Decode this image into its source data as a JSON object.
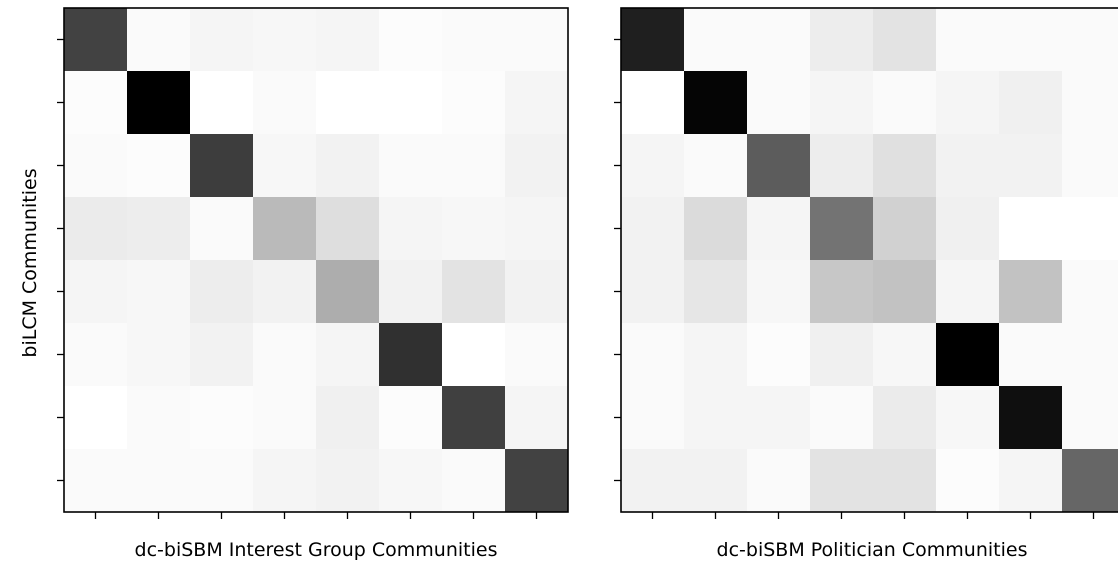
{
  "chart_data": [
    {
      "type": "heatmap",
      "title": "",
      "xlabel": "dc-biSBM Interest Group Communities",
      "ylabel": "biLCM Communities",
      "color_scale": {
        "low": "#ffffff",
        "high": "#000000"
      },
      "values": [
        [
          0.74,
          0.02,
          0.04,
          0.03,
          0.04,
          0.01,
          0.02,
          0.02
        ],
        [
          0.01,
          1.0,
          0.0,
          0.02,
          0.0,
          0.0,
          0.01,
          0.04
        ],
        [
          0.02,
          0.01,
          0.76,
          0.03,
          0.05,
          0.02,
          0.02,
          0.05
        ],
        [
          0.08,
          0.07,
          0.02,
          0.27,
          0.13,
          0.04,
          0.03,
          0.04
        ],
        [
          0.04,
          0.03,
          0.07,
          0.05,
          0.32,
          0.05,
          0.11,
          0.05
        ],
        [
          0.02,
          0.03,
          0.05,
          0.02,
          0.04,
          0.81,
          0.0,
          0.02
        ],
        [
          0.0,
          0.02,
          0.01,
          0.02,
          0.06,
          0.01,
          0.75,
          0.04
        ],
        [
          0.02,
          0.02,
          0.02,
          0.04,
          0.05,
          0.03,
          0.02,
          0.74
        ]
      ]
    },
    {
      "type": "heatmap",
      "title": "",
      "xlabel": "dc-biSBM Politician Communities",
      "ylabel": "",
      "color_scale": {
        "low": "#ffffff",
        "high": "#000000"
      },
      "values": [
        [
          0.88,
          0.02,
          0.02,
          0.07,
          0.11,
          0.02,
          0.02,
          0.02
        ],
        [
          0.0,
          0.98,
          0.02,
          0.04,
          0.02,
          0.04,
          0.06,
          0.02
        ],
        [
          0.04,
          0.02,
          0.64,
          0.07,
          0.12,
          0.05,
          0.05,
          0.02
        ],
        [
          0.05,
          0.14,
          0.04,
          0.55,
          0.18,
          0.06,
          0.0,
          0.0
        ],
        [
          0.05,
          0.1,
          0.03,
          0.22,
          0.24,
          0.04,
          0.24,
          0.02
        ],
        [
          0.02,
          0.04,
          0.01,
          0.06,
          0.03,
          1.0,
          0.02,
          0.02
        ],
        [
          0.02,
          0.04,
          0.04,
          0.02,
          0.08,
          0.03,
          0.94,
          0.02
        ],
        [
          0.05,
          0.05,
          0.02,
          0.11,
          0.11,
          0.01,
          0.04,
          0.6
        ]
      ]
    }
  ]
}
